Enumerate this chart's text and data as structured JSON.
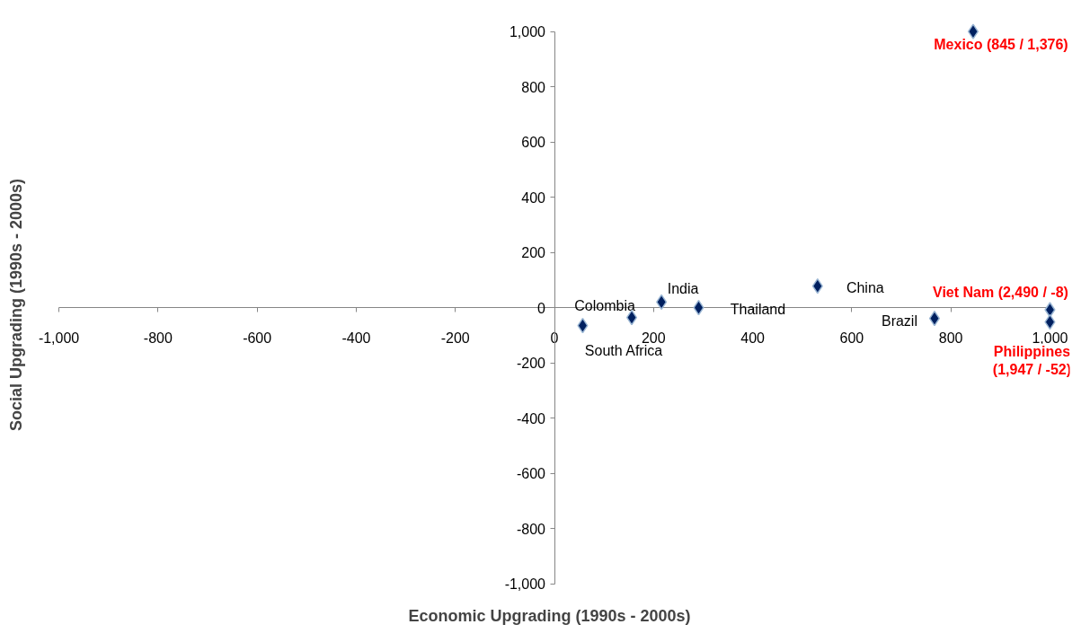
{
  "chart_data": {
    "type": "scatter",
    "xlabel": "Economic Upgrading (1990s - 2000s)",
    "ylabel": "Social Upgrading (1990s - 2000s)",
    "x": [
      57,
      156,
      216,
      291,
      531,
      767,
      1000,
      1000,
      845
    ],
    "values": [
      -65,
      -36,
      20,
      0,
      78,
      -39,
      -8,
      -52,
      1000
    ],
    "color": "#002060",
    "marker": "diamond",
    "grid": false,
    "xlim": [
      -1000,
      1000
    ],
    "ylim": [
      -1000,
      1000
    ],
    "xticks": [
      {
        "value": -1000,
        "label": "-1,000"
      },
      -800,
      -600,
      -400,
      -200,
      0,
      200,
      400,
      600,
      800,
      {
        "value": 1000,
        "label": "1,000"
      }
    ],
    "yticks": [
      {
        "value": -1000,
        "label": "-1,000"
      },
      -800,
      -600,
      -400,
      -200,
      0,
      200,
      400,
      600,
      800,
      {
        "value": 1000,
        "label": "1,000"
      }
    ],
    "annotations": [
      {
        "text": "South Africa",
        "x": 57,
        "y": -65
      },
      {
        "text": "Colombia",
        "x": 156,
        "y": -36
      },
      {
        "text": "India",
        "x": 216,
        "y": 20
      },
      {
        "text": "Thailand",
        "x": 291,
        "y": 0
      },
      {
        "text": "China",
        "x": 531,
        "y": 78
      },
      {
        "text": "Brazil",
        "x": 767,
        "y": -39
      },
      {
        "text": "Viet Nam (2,490 / -8)",
        "x": 1000,
        "y": -8
      },
      {
        "text": "Philippines\n(1,947 / -52)",
        "x": 1000,
        "y": -52
      },
      {
        "text": "Mexico (845 / 1,376)",
        "x": 845,
        "y": 1000
      }
    ]
  }
}
